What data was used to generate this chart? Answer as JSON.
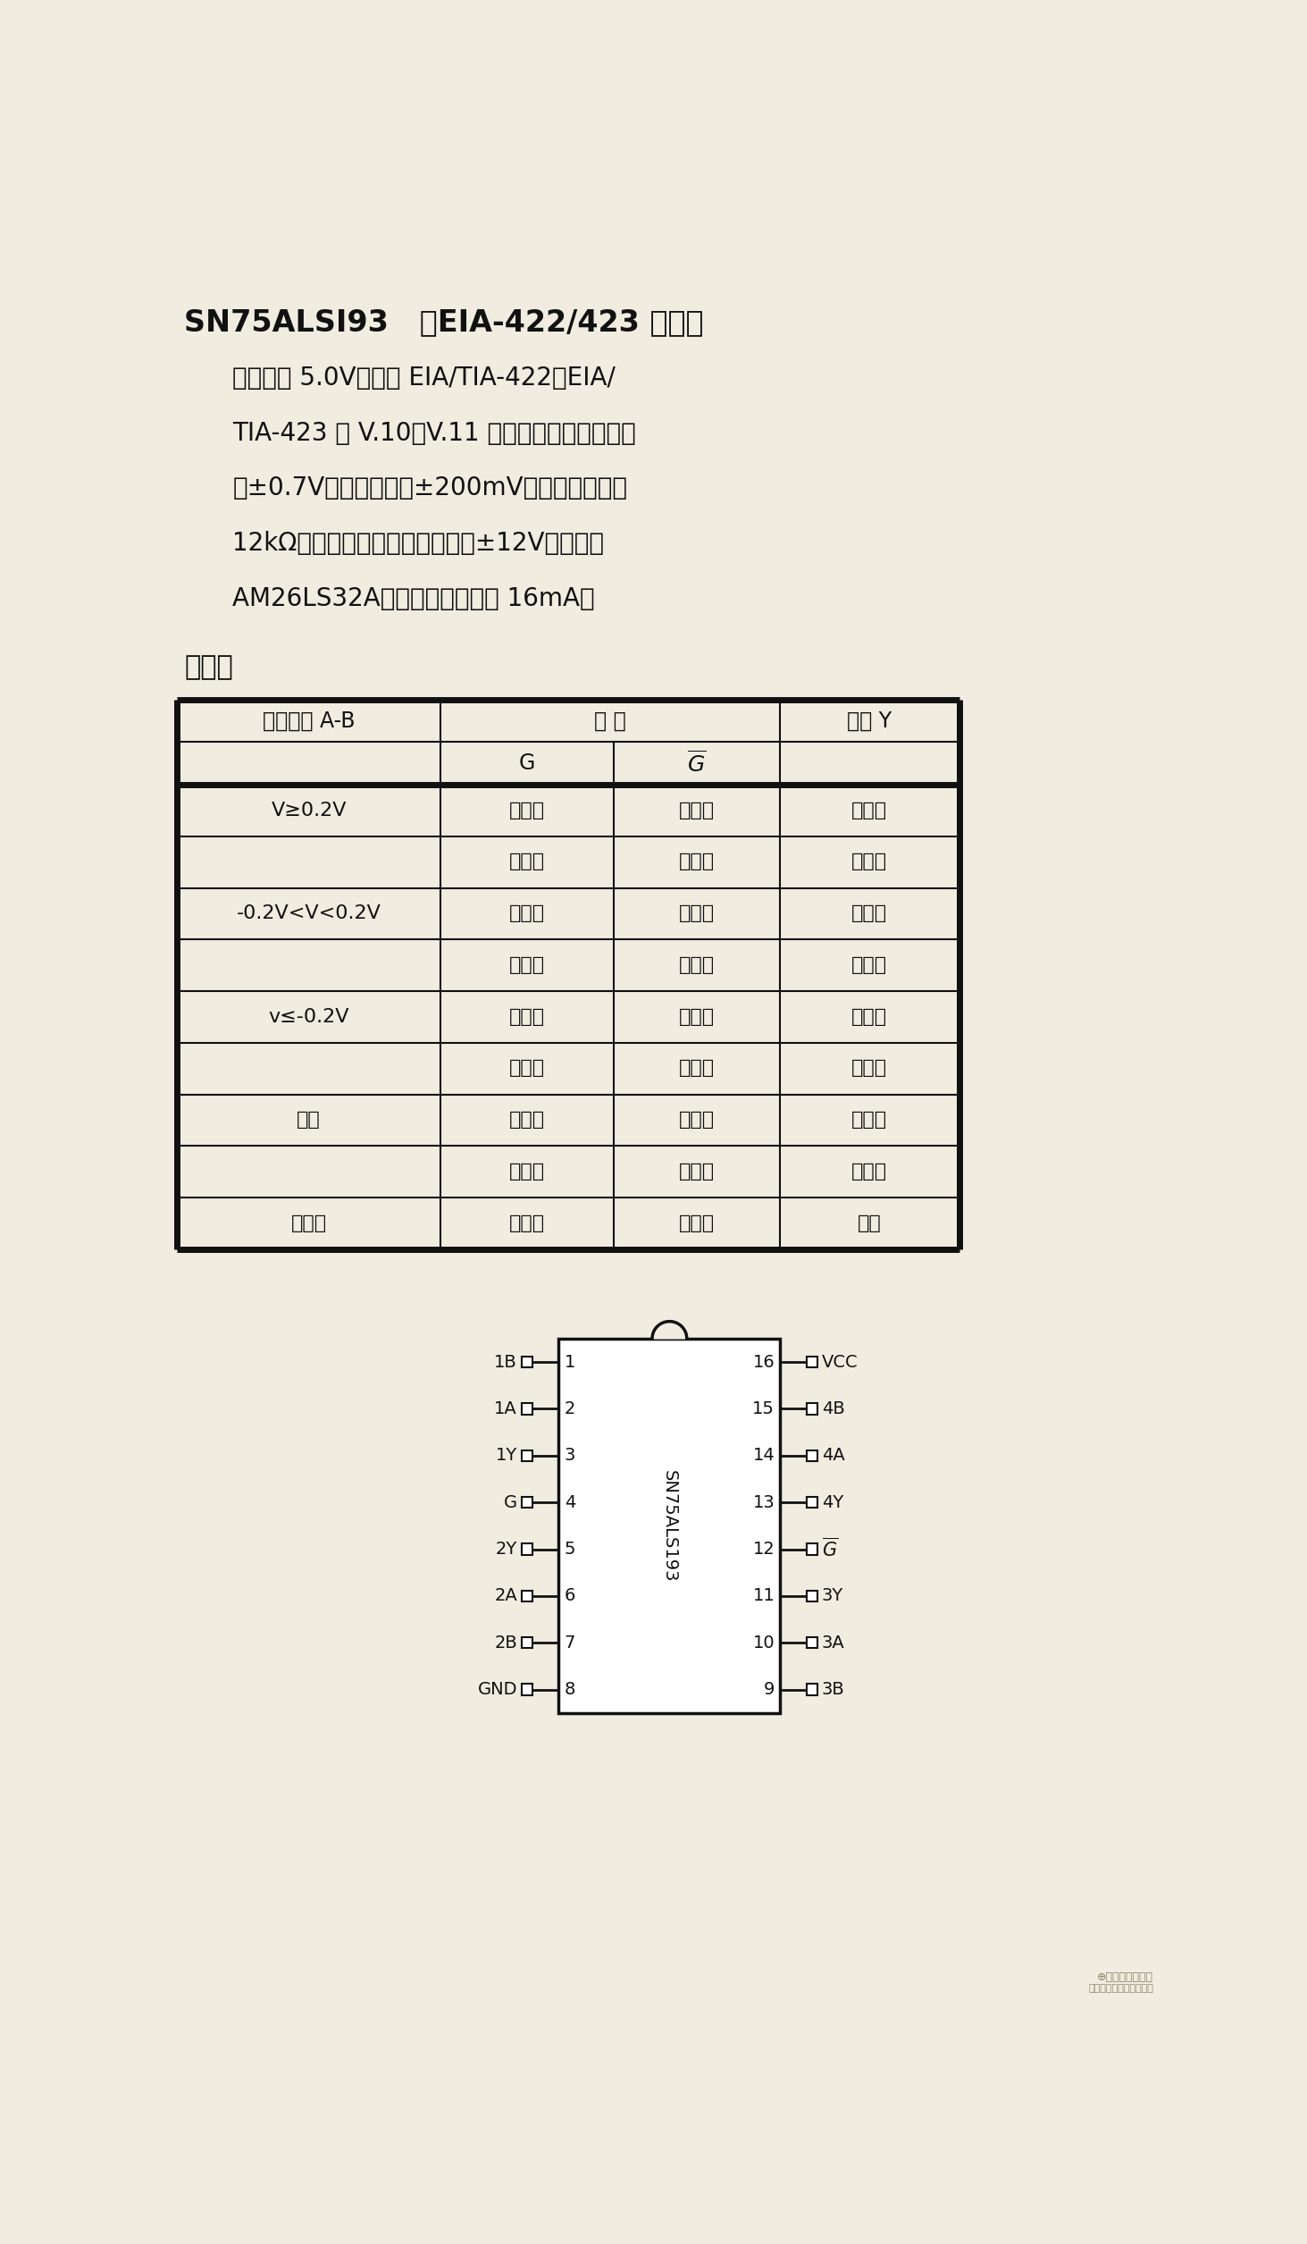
{
  "title_bold": "SN75ALSI93   四EIA-422/423 接收器",
  "description_lines": [
    "工作电压 5.0V；满足 EIA/TIA-422、EIA/",
    "TIA-423 和 V.10、V.11 标准要求；共模输入电",
    "压±0.7V；输入灵敏度±200mV；输入阻抗大于",
    "12kΩ；三态输出；差模输入电压±12V；可代替",
    "AM26LS32A；低电平输出电流 16mA。"
  ],
  "table_title": "功能表",
  "table_data": [
    [
      "V≥0.2V",
      "高电平",
      "不相关",
      "高电平"
    ],
    [
      "",
      "不相关",
      "低电平",
      "高电平"
    ],
    [
      "-0.2V<V<0.2V",
      "高电平",
      "不相关",
      "不确定"
    ],
    [
      "",
      "不相关",
      "低电平",
      "不确定"
    ],
    [
      "v≤-0.2V",
      "高电平",
      "不相关",
      "低电平"
    ],
    [
      "",
      "不相关",
      "低电平",
      "低电平"
    ],
    [
      "开路",
      "高电平",
      "不相关",
      "高电平"
    ],
    [
      "",
      "不相关",
      "低电平",
      "高电平"
    ],
    [
      "不相关",
      "低电平",
      "高电平",
      "高阻"
    ]
  ],
  "ic_pins_left": [
    [
      "1B",
      "1"
    ],
    [
      "1A",
      "2"
    ],
    [
      "1Y",
      "3"
    ],
    [
      "G",
      "4"
    ],
    [
      "2Y",
      "5"
    ],
    [
      "2A",
      "6"
    ],
    [
      "2B",
      "7"
    ],
    [
      "GND",
      "8"
    ]
  ],
  "ic_pins_right": [
    [
      "16",
      "VCC"
    ],
    [
      "15",
      "4B"
    ],
    [
      "14",
      "4A"
    ],
    [
      "13",
      "4Y"
    ],
    [
      "12",
      "G_bar"
    ],
    [
      "11",
      "3Y"
    ],
    [
      "10",
      "3A"
    ],
    [
      "9",
      "3B"
    ]
  ],
  "ic_label": "SN75ALS193",
  "bg_color": "#f0ece0",
  "text_color": "#111111",
  "table_line_color": "#111111"
}
